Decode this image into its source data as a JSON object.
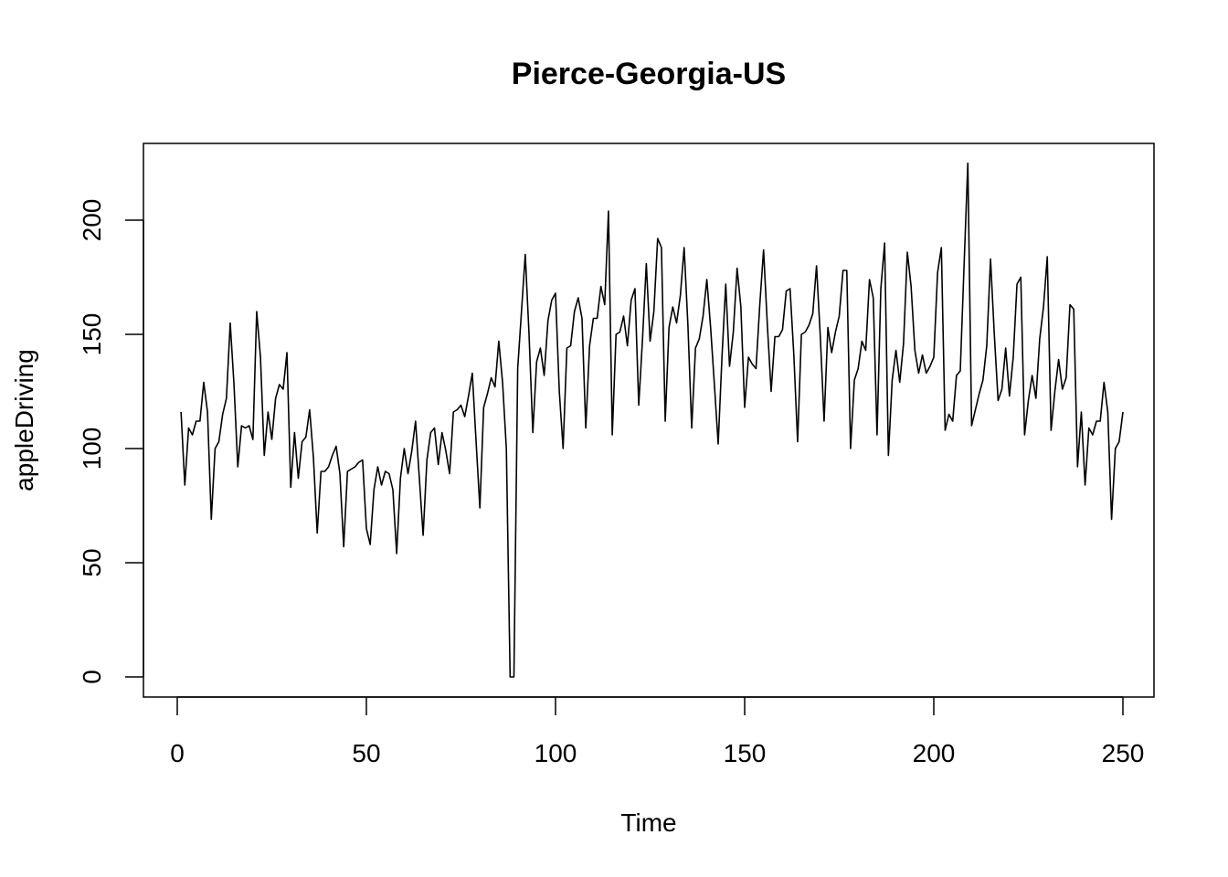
{
  "chart_data": {
    "type": "line",
    "title": "Pierce-Georgia-US",
    "xlabel": "Time",
    "ylabel": "appleDriving",
    "xlim": [
      1,
      248
    ],
    "ylim": [
      0,
      225
    ],
    "xticks": [
      0,
      50,
      100,
      150,
      200,
      250
    ],
    "yticks": [
      0,
      50,
      100,
      150,
      200
    ],
    "grid": false,
    "legend": "none",
    "series": [
      {
        "values": [
          116,
          84,
          109,
          106,
          112,
          112,
          129,
          116,
          69,
          100,
          103,
          115,
          122,
          155,
          128,
          92,
          110,
          109,
          110,
          104,
          160,
          140,
          97,
          116,
          104,
          122,
          128,
          126,
          142,
          83,
          107,
          87,
          103,
          105,
          117,
          96,
          63,
          90,
          90,
          92,
          97,
          101,
          89,
          57,
          90,
          91,
          92,
          94,
          95,
          65,
          58,
          82,
          92,
          84,
          90,
          89,
          82,
          54,
          87,
          100,
          89,
          99,
          112,
          87,
          62,
          95,
          107,
          109,
          93,
          107,
          99,
          89,
          116,
          117,
          119,
          114,
          123,
          133,
          103,
          74,
          118,
          124,
          131,
          127,
          147,
          129,
          100,
          0,
          0,
          135,
          160,
          185,
          150,
          107,
          138,
          144,
          132,
          156,
          165,
          168,
          125,
          100,
          144,
          145,
          160,
          166,
          157,
          109,
          145,
          157,
          157,
          171,
          163,
          204,
          106,
          150,
          151,
          158,
          145,
          165,
          170,
          119,
          148,
          181,
          147,
          160,
          192,
          188,
          112,
          153,
          162,
          155,
          167,
          188,
          154,
          109,
          144,
          148,
          158,
          174,
          153,
          128,
          102,
          140,
          172,
          136,
          151,
          179,
          162,
          118,
          140,
          137,
          135,
          163,
          187,
          154,
          125,
          149,
          149,
          152,
          169,
          170,
          141,
          103,
          150,
          151,
          154,
          159,
          180,
          149,
          112,
          153,
          142,
          151,
          158,
          178,
          178,
          100,
          130,
          135,
          147,
          143,
          174,
          166,
          106,
          170,
          190,
          97,
          130,
          143,
          129,
          146,
          186,
          171,
          143,
          133,
          141,
          133,
          136,
          140,
          177,
          188,
          108,
          115,
          112,
          132,
          134,
          180,
          225,
          110,
          117,
          124,
          130,
          145,
          183,
          150,
          121,
          126,
          144,
          123,
          140,
          172,
          175,
          106,
          121,
          132,
          122,
          148,
          162,
          184,
          108,
          125,
          139,
          126,
          131,
          163,
          161,
          92,
          116,
          84,
          109,
          106,
          112,
          112,
          129,
          116,
          69,
          100,
          103,
          116
        ]
      }
    ]
  }
}
